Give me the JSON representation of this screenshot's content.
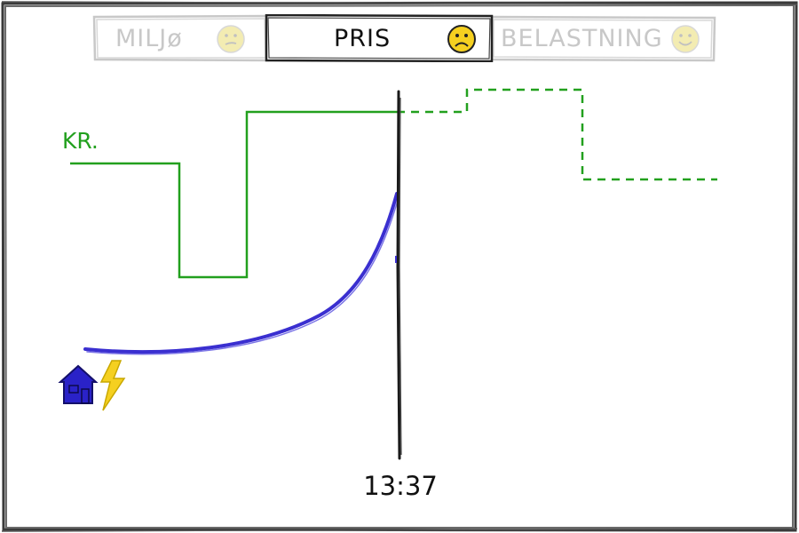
{
  "tabs": [
    {
      "label": "MILJø",
      "state": "inactive",
      "face": "neutral"
    },
    {
      "label": "PRIS",
      "state": "active",
      "face": "sad"
    },
    {
      "label": "BELASTNING",
      "state": "inactive",
      "face": "happy"
    }
  ],
  "chart": {
    "unit_label": "KR.",
    "current_time": "13:37"
  },
  "icons": {
    "house": "house-icon",
    "lightning": "lightning-icon"
  },
  "colors": {
    "price_line": "#22a01e",
    "consumption_line": "#3a2fd0",
    "now_marker": "#1a1a1a",
    "house": "#2a22c8",
    "lightning": "#f5d020",
    "face_active": "#f5d020",
    "face_inactive": "#f3ecb2"
  }
}
